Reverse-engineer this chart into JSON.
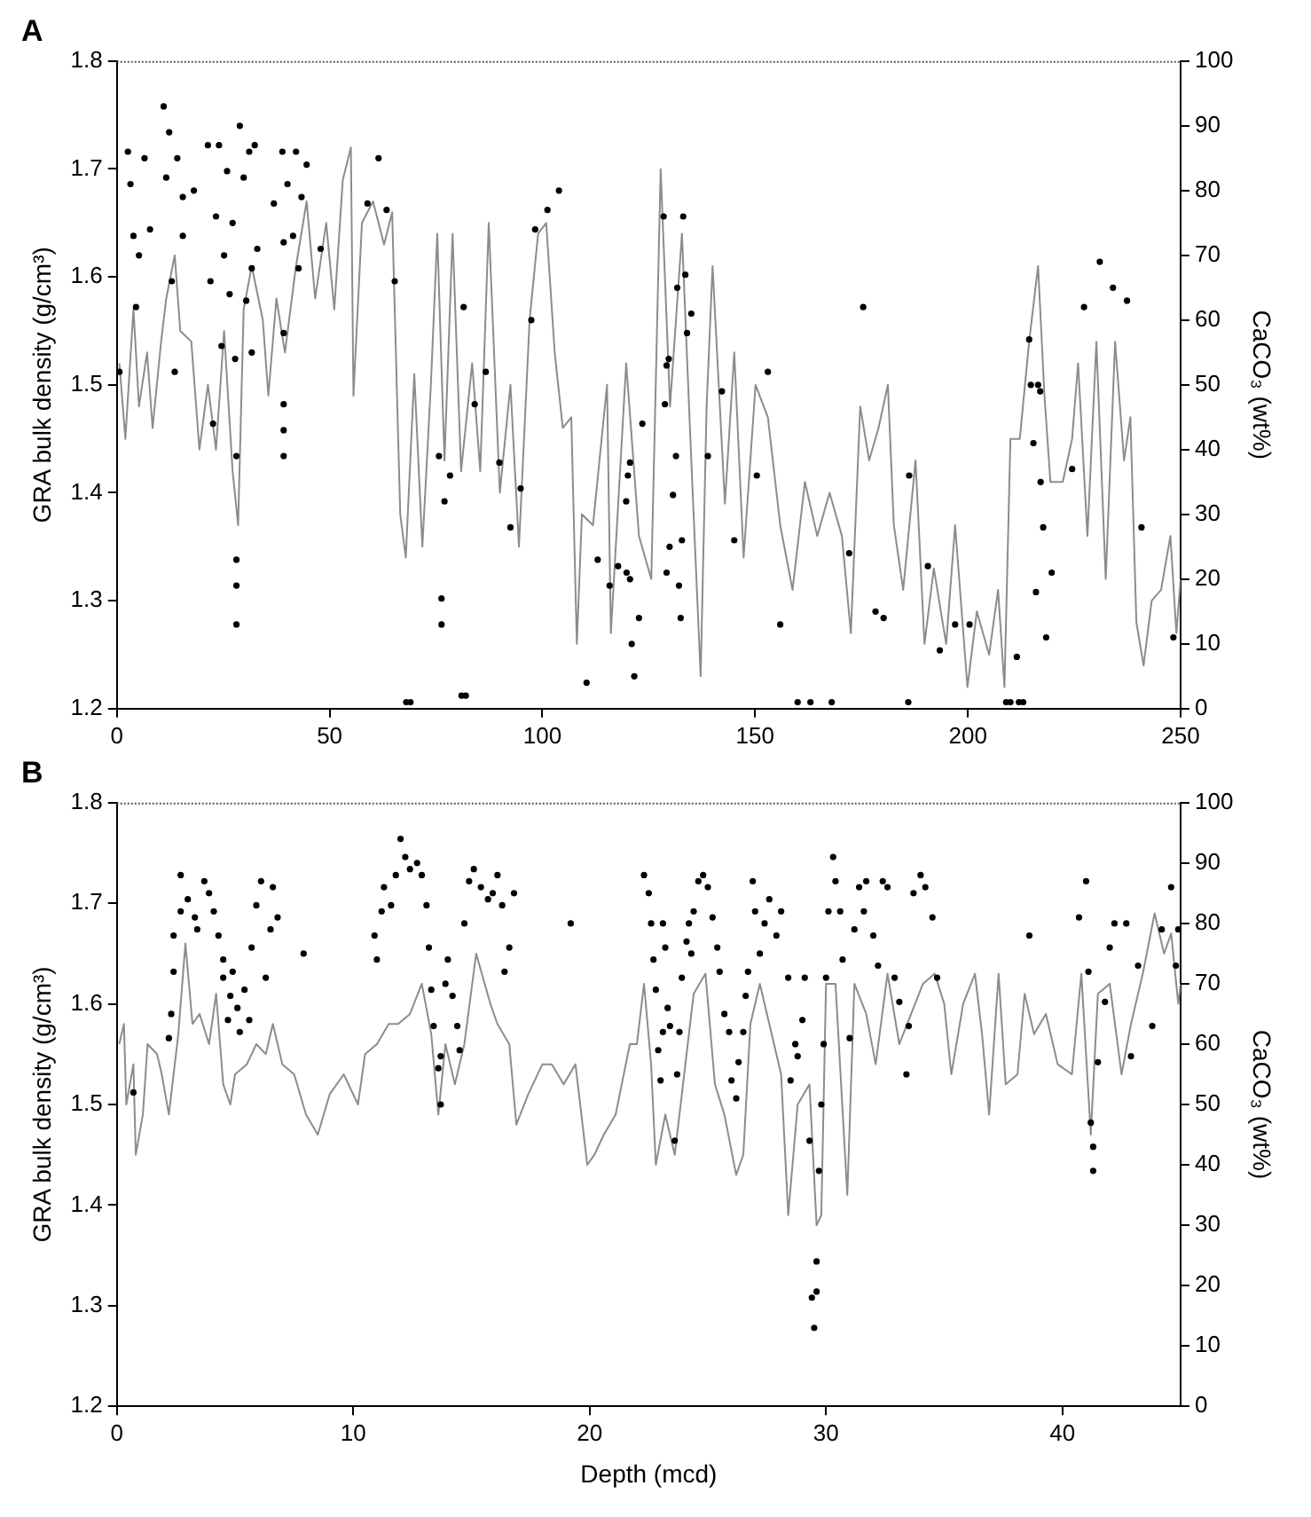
{
  "chart_data": [
    {
      "type": "line",
      "title": "A",
      "ylabel": "GRA bulk density (g/cm³)",
      "y2label": "CaCO₃ (wt%)",
      "xlim": [
        0,
        250
      ],
      "xticks": [
        0,
        50,
        100,
        150,
        200,
        250
      ],
      "ylim": [
        1.2,
        1.8
      ],
      "yticks": [
        1.2,
        1.3,
        1.4,
        1.5,
        1.6,
        1.7,
        1.8
      ],
      "y2lim": [
        0,
        100
      ],
      "y2ticks": [
        0,
        10,
        20,
        30,
        40,
        50,
        60,
        70,
        80,
        90,
        100
      ],
      "grid": false,
      "series": [
        {
          "type": "line",
          "color": "#8c8c8c",
          "marker": "none",
          "line_style": "solid",
          "x": [
            0.6,
            2,
            3.9,
            5.2,
            7.1,
            8.4,
            10.4,
            11.6,
            13.6,
            14.9,
            17.5,
            19.4,
            21.4,
            23.3,
            25.2,
            27.2,
            28.5,
            29.8,
            31.7,
            34.3,
            35.6,
            37.5,
            39.5,
            42.1,
            44.6,
            46.6,
            49.2,
            51.1,
            53.1,
            55,
            55.6,
            57.6,
            60.2,
            62.8,
            64.7,
            65.3,
            66.6,
            67.9,
            69.9,
            71.8,
            73.8,
            75.3,
            77,
            78.9,
            80.9,
            83.5,
            85.4,
            87.4,
            90,
            92.5,
            94.5,
            97,
            99,
            100.9,
            102.9,
            104.8,
            106.8,
            108.1,
            109.3,
            111.9,
            115.2,
            116.1,
            119.7,
            122.7,
            125.6,
            127.8,
            130,
            132.8,
            135,
            137.2,
            138.6,
            140,
            142.9,
            145.1,
            147.3,
            150.1,
            153,
            155.9,
            158.8,
            161.7,
            164.6,
            167.5,
            170.4,
            172.5,
            174.7,
            176.8,
            179,
            181.2,
            182.6,
            184.8,
            187.7,
            189.8,
            192,
            194.9,
            197,
            199.9,
            202.1,
            205,
            207.1,
            208.6,
            210,
            212.2,
            214.4,
            216.5,
            218,
            219.4,
            222.3,
            224.5,
            225.9,
            228.1,
            230.2,
            232.4,
            234.6,
            236.7,
            238.2,
            239.6,
            241.3,
            243.2,
            245.4,
            247.6,
            249,
            250
          ],
          "values": [
            1.52,
            1.45,
            1.57,
            1.48,
            1.53,
            1.46,
            1.54,
            1.58,
            1.62,
            1.55,
            1.54,
            1.44,
            1.5,
            1.44,
            1.55,
            1.42,
            1.37,
            1.57,
            1.61,
            1.56,
            1.49,
            1.58,
            1.53,
            1.61,
            1.67,
            1.58,
            1.65,
            1.57,
            1.69,
            1.72,
            1.49,
            1.65,
            1.67,
            1.63,
            1.66,
            1.57,
            1.38,
            1.34,
            1.51,
            1.35,
            1.5,
            1.64,
            1.43,
            1.64,
            1.42,
            1.52,
            1.42,
            1.65,
            1.4,
            1.5,
            1.35,
            1.56,
            1.64,
            1.65,
            1.53,
            1.46,
            1.47,
            1.26,
            1.38,
            1.37,
            1.5,
            1.27,
            1.52,
            1.36,
            1.32,
            1.7,
            1.48,
            1.64,
            1.43,
            1.23,
            1.48,
            1.61,
            1.39,
            1.53,
            1.34,
            1.5,
            1.47,
            1.37,
            1.31,
            1.41,
            1.36,
            1.4,
            1.36,
            1.27,
            1.48,
            1.43,
            1.46,
            1.5,
            1.37,
            1.31,
            1.43,
            1.26,
            1.33,
            1.26,
            1.37,
            1.22,
            1.29,
            1.25,
            1.31,
            1.22,
            1.45,
            1.45,
            1.54,
            1.61,
            1.49,
            1.41,
            1.41,
            1.45,
            1.52,
            1.36,
            1.54,
            1.32,
            1.54,
            1.43,
            1.47,
            1.28,
            1.24,
            1.3,
            1.31,
            1.36,
            1.27,
            1.32
          ]
        },
        {
          "type": "scatter",
          "axis": "y2",
          "color": "#000000",
          "marker": "circle",
          "x": [
            0.6,
            2.6,
            3.2,
            3.9,
            4.5,
            5.2,
            6.5,
            7.8,
            11,
            11.6,
            12.3,
            12.9,
            13.6,
            14.2,
            15.5,
            15.5,
            18.1,
            21.4,
            22,
            22.6,
            23.3,
            24,
            24.6,
            25.2,
            25.9,
            26.5,
            27.2,
            27.8,
            28.1,
            28.1,
            28.1,
            28.1,
            28.9,
            29.8,
            30.4,
            31.1,
            31.7,
            32.4,
            33,
            31.7,
            36.9,
            38.9,
            39.2,
            39.2,
            39.2,
            39.2,
            39.2,
            40.1,
            41.4,
            42.1,
            42.7,
            43.4,
            44.6,
            47.9,
            58.9,
            61.5,
            63.4,
            65.3,
            68,
            69,
            75.7,
            76.3,
            76.3,
            77,
            78.3,
            81,
            82,
            81.5,
            84.1,
            86.7,
            89.9,
            92.5,
            94.9,
            97.4,
            98.3,
            101.2,
            103.9,
            110.4,
            113,
            115.8,
            117.8,
            119.7,
            120.1,
            120.6,
            119.8,
            120.6,
            121,
            121.6,
            122.7,
            123.5,
            128.5,
            129.2,
            129.7,
            128.8,
            129.2,
            129.9,
            130.7,
            131.4,
            131.7,
            132.1,
            132.5,
            133.1,
            133.6,
            134,
            135,
            132.8,
            138.9,
            142.2,
            145.1,
            150.4,
            153,
            155.9,
            160,
            163,
            168,
            172.1,
            175.4,
            178.3,
            180.2,
            186,
            186.2,
            190.6,
            193.4,
            197,
            200.4,
            209,
            210,
            211.5,
            212,
            213,
            214.4,
            214.8,
            215.4,
            216,
            216.5,
            217,
            217.1,
            217.7,
            218.4,
            219.7,
            224.5,
            227.3,
            231,
            234.1,
            237.4,
            240.8,
            248.3
          ],
          "values": [
            52,
            86,
            81,
            73,
            62,
            70,
            85,
            74,
            93,
            82,
            89,
            66,
            52,
            85,
            79,
            73,
            80,
            87,
            66,
            44,
            76,
            87,
            56,
            70,
            83,
            64,
            75,
            54,
            39,
            23,
            19,
            13,
            90,
            82,
            63,
            86,
            68,
            87,
            71,
            55,
            78,
            86,
            72,
            58,
            47,
            43,
            39,
            81,
            73,
            86,
            68,
            79,
            84,
            71,
            78,
            85,
            77,
            66,
            1,
            1,
            39,
            17,
            13,
            32,
            36,
            2,
            2,
            62,
            47,
            52,
            38,
            28,
            34,
            60,
            74,
            77,
            80,
            4,
            23,
            19,
            22,
            32,
            36,
            38,
            21,
            20,
            10,
            5,
            14,
            44,
            76,
            53,
            54,
            47,
            21,
            25,
            33,
            39,
            65,
            19,
            14,
            76,
            67,
            58,
            61,
            26,
            39,
            49,
            26,
            36,
            52,
            13,
            1,
            1,
            1,
            24,
            62,
            15,
            14,
            1,
            36,
            22,
            9,
            13,
            13,
            1,
            1,
            8,
            1,
            1,
            57,
            50,
            41,
            18,
            50,
            49,
            35,
            28,
            11,
            21,
            37,
            62,
            69,
            65,
            63,
            28,
            11
          ]
        }
      ]
    },
    {
      "type": "line",
      "title": "B",
      "xlabel": "Depth (mcd)",
      "ylabel": "GRA bulk density (g/cm³)",
      "y2label": "CaCO₃ (wt%)",
      "xlim": [
        0,
        45
      ],
      "xticks": [
        0,
        10,
        20,
        30,
        40
      ],
      "ylim": [
        1.2,
        1.8
      ],
      "yticks": [
        1.2,
        1.3,
        1.4,
        1.5,
        1.6,
        1.7,
        1.8
      ],
      "y2lim": [
        0,
        100
      ],
      "y2ticks": [
        0,
        10,
        20,
        30,
        40,
        50,
        60,
        70,
        80,
        90,
        100
      ],
      "grid": false,
      "series": [
        {
          "type": "line",
          "color": "#8c8c8c",
          "marker": "none",
          "line_style": "solid",
          "x": [
            0.1,
            0.3,
            0.4,
            0.7,
            0.8,
            1.1,
            1.3,
            1.7,
            1.9,
            2.2,
            2.6,
            2.9,
            3.2,
            3.5,
            3.9,
            4.2,
            4.5,
            4.8,
            5,
            5.5,
            5.9,
            6.3,
            6.6,
            7,
            7.5,
            8,
            8.5,
            9,
            9.6,
            10.2,
            10.5,
            11,
            11.5,
            11.9,
            12.4,
            12.9,
            13.3,
            13.6,
            13.9,
            14.3,
            14.7,
            15.2,
            15.8,
            16.1,
            16.6,
            16.9,
            17.4,
            18,
            18.4,
            18.9,
            19.4,
            19.9,
            20.2,
            20.6,
            21.1,
            21.7,
            22,
            22.3,
            22.6,
            22.8,
            23.2,
            23.6,
            23.9,
            24.2,
            24.4,
            24.9,
            25.3,
            25.7,
            26.2,
            26.5,
            26.8,
            27.2,
            27.6,
            28.1,
            28.4,
            28.8,
            29.3,
            29.6,
            29.8,
            30,
            30.4,
            30.9,
            31.2,
            31.7,
            32.1,
            32.6,
            33.1,
            33.6,
            34.1,
            34.6,
            35,
            35.3,
            35.8,
            36.3,
            36.6,
            36.9,
            37.3,
            37.6,
            38.1,
            38.4,
            38.8,
            39.3,
            39.8,
            40.4,
            40.8,
            41.2,
            41.5,
            42,
            42.5,
            42.9,
            43.4,
            43.9,
            44.3,
            44.6,
            44.9,
            45
          ],
          "values": [
            1.56,
            1.58,
            1.5,
            1.54,
            1.45,
            1.49,
            1.56,
            1.55,
            1.53,
            1.49,
            1.57,
            1.66,
            1.58,
            1.59,
            1.56,
            1.61,
            1.52,
            1.5,
            1.53,
            1.54,
            1.56,
            1.55,
            1.58,
            1.54,
            1.53,
            1.49,
            1.47,
            1.51,
            1.53,
            1.5,
            1.55,
            1.56,
            1.58,
            1.58,
            1.59,
            1.62,
            1.57,
            1.49,
            1.56,
            1.52,
            1.56,
            1.65,
            1.6,
            1.58,
            1.56,
            1.48,
            1.51,
            1.54,
            1.54,
            1.52,
            1.54,
            1.44,
            1.45,
            1.47,
            1.49,
            1.56,
            1.56,
            1.62,
            1.54,
            1.44,
            1.49,
            1.45,
            1.51,
            1.57,
            1.61,
            1.63,
            1.52,
            1.49,
            1.43,
            1.45,
            1.58,
            1.62,
            1.58,
            1.53,
            1.39,
            1.5,
            1.52,
            1.38,
            1.39,
            1.62,
            1.62,
            1.41,
            1.62,
            1.59,
            1.54,
            1.63,
            1.56,
            1.59,
            1.62,
            1.63,
            1.6,
            1.53,
            1.6,
            1.63,
            1.57,
            1.49,
            1.63,
            1.52,
            1.53,
            1.61,
            1.57,
            1.59,
            1.54,
            1.53,
            1.63,
            1.47,
            1.61,
            1.62,
            1.53,
            1.58,
            1.63,
            1.69,
            1.65,
            1.67,
            1.6,
            1.62
          ]
        },
        {
          "type": "scatter",
          "axis": "y2",
          "color": "#000000",
          "marker": "circle",
          "x": [
            0.7,
            2.2,
            2.3,
            2.4,
            2.4,
            2.7,
            2.7,
            3,
            3.3,
            3.4,
            3.7,
            3.9,
            4.1,
            4.3,
            4.5,
            4.5,
            4.7,
            4.8,
            4.9,
            5.1,
            5.2,
            5.4,
            5.6,
            5.7,
            5.9,
            6.1,
            6.3,
            6.5,
            6.6,
            6.8,
            7.9,
            10.9,
            11,
            11.2,
            11.3,
            11.6,
            11.8,
            12,
            12.2,
            12.4,
            12.7,
            12.9,
            13.1,
            13.2,
            13.3,
            13.4,
            13.6,
            13.7,
            13.7,
            13.9,
            14,
            14.2,
            14.4,
            14.5,
            14.7,
            14.9,
            15.1,
            15.4,
            15.7,
            15.9,
            16.1,
            16.3,
            16.4,
            16.6,
            16.8,
            19.2,
            22.3,
            22.5,
            22.6,
            22.7,
            22.8,
            22.9,
            23,
            23.1,
            23.1,
            23.2,
            23.3,
            23.4,
            23.6,
            23.7,
            23.8,
            23.9,
            24.1,
            24.2,
            24.3,
            24.4,
            24.6,
            24.8,
            25,
            25.2,
            25.4,
            25.5,
            25.7,
            25.9,
            26,
            26.2,
            26.3,
            26.5,
            26.6,
            26.7,
            26.9,
            27,
            27.2,
            27.4,
            27.6,
            27.9,
            28.1,
            28.4,
            28.5,
            28.7,
            28.8,
            29,
            29.1,
            29.3,
            29.4,
            29.5,
            29.6,
            29.6,
            29.7,
            29.8,
            29.9,
            30,
            30.1,
            30.3,
            30.4,
            30.6,
            30.7,
            31,
            31.2,
            31.4,
            31.6,
            31.7,
            32,
            32.2,
            32.4,
            32.6,
            32.9,
            33.1,
            33.4,
            33.5,
            33.7,
            34,
            34.2,
            34.5,
            34.7,
            38.6,
            40.7,
            41,
            41.1,
            41.2,
            41.3,
            41.3,
            41.5,
            41.8,
            42,
            42.2,
            42.7,
            42.9,
            43.2,
            43.8,
            44.2,
            44.6,
            44.8,
            44.9
          ],
          "values": [
            52,
            61,
            65,
            72,
            78,
            82,
            88,
            84,
            81,
            79,
            87,
            85,
            82,
            78,
            74,
            71,
            64,
            68,
            72,
            66,
            62,
            69,
            64,
            76,
            83,
            87,
            71,
            79,
            86,
            81,
            75,
            78,
            74,
            82,
            86,
            83,
            88,
            94,
            91,
            89,
            90,
            88,
            83,
            76,
            69,
            63,
            56,
            50,
            58,
            70,
            74,
            68,
            63,
            59,
            80,
            87,
            89,
            86,
            84,
            85,
            88,
            83,
            72,
            76,
            85,
            80,
            88,
            85,
            80,
            74,
            69,
            59,
            54,
            62,
            80,
            76,
            66,
            63,
            44,
            55,
            62,
            71,
            77,
            80,
            75,
            82,
            87,
            88,
            86,
            81,
            76,
            72,
            65,
            62,
            54,
            51,
            57,
            62,
            68,
            72,
            87,
            82,
            75,
            80,
            84,
            78,
            82,
            71,
            54,
            60,
            58,
            64,
            71,
            44,
            18,
            13,
            19,
            24,
            39,
            50,
            60,
            71,
            82,
            91,
            87,
            82,
            74,
            61,
            79,
            86,
            82,
            87,
            78,
            73,
            87,
            86,
            71,
            67,
            55,
            63,
            85,
            88,
            86,
            81,
            71,
            78,
            81,
            87,
            72,
            47,
            43,
            39,
            57,
            67,
            76,
            80,
            80,
            58,
            73,
            63,
            79,
            86,
            73,
            79
          ]
        }
      ]
    }
  ]
}
